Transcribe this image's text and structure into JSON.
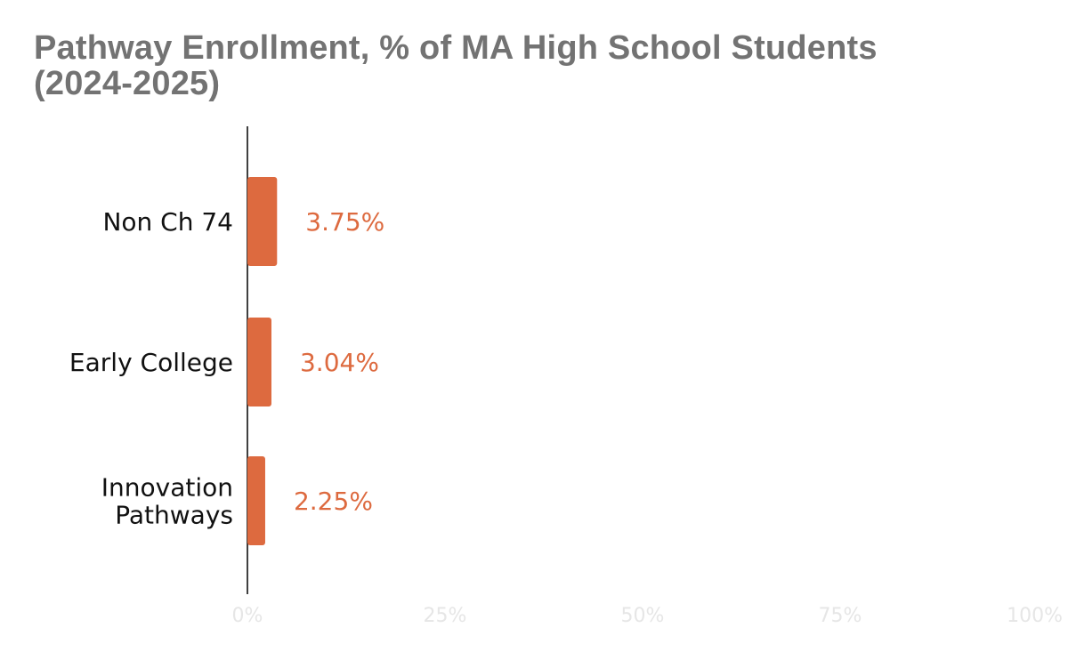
{
  "chart_data": {
    "type": "bar",
    "orientation": "horizontal",
    "title": "Pathway Enrollment, % of MA High School Students (2024-2025)",
    "categories": [
      [
        "Non Ch 74"
      ],
      [
        "Early College"
      ],
      [
        "Innovation",
        "Pathways"
      ]
    ],
    "values": [
      3.75,
      3.04,
      2.25
    ],
    "value_labels": [
      "3.75%",
      "3.04%",
      "2.25%"
    ],
    "xlim": [
      0,
      100
    ],
    "x_ticks": [
      {
        "value": 0,
        "label": "0%"
      },
      {
        "value": 25,
        "label": "25%"
      },
      {
        "value": 50,
        "label": "50%"
      },
      {
        "value": 75,
        "label": "75%"
      },
      {
        "value": 100,
        "label": "100%"
      }
    ],
    "grid": false,
    "legend": "none",
    "colors": {
      "bar": "#dd6a3f",
      "value_label": "#dd6a3f",
      "title": "#737373",
      "tick_label": "#e6e6e6",
      "axis": "#000000"
    }
  }
}
